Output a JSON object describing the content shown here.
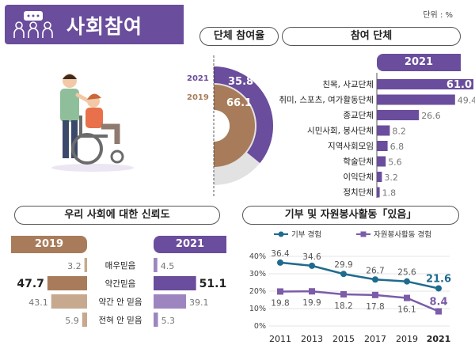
{
  "header": {
    "title": "사회참여",
    "unit": "단위 : %"
  },
  "colors": {
    "purple": "#6a4d9c",
    "brown": "#a87c5a",
    "gray": "#c8c8c8",
    "lightgray": "#e2e2e2",
    "line_blue": "#1f6b8e",
    "line_purple": "#7b5ca8"
  },
  "sections": {
    "participation_rate": "단체 참여율",
    "participation_org": "참여 단체",
    "trust": "우리 사회에 대한 신뢰도",
    "donation": "기부 및 자원봉사활동「있음」"
  },
  "chart_data": [
    {
      "type": "pie",
      "title": "단체 참여율",
      "series": [
        {
          "name": "2021",
          "value": 35.8
        },
        {
          "name": "2019",
          "value": 66.1
        }
      ]
    },
    {
      "type": "bar",
      "title": "참여 단체",
      "year": "2021",
      "categories": [
        "친목, 사교단체",
        "취미, 스포츠, 여가활동단체",
        "종교단체",
        "시민사회, 봉사단체",
        "지역사회모임",
        "학술단체",
        "이익단체",
        "정치단체"
      ],
      "values": [
        61.0,
        49.4,
        26.6,
        8.2,
        6.8,
        5.6,
        3.2,
        1.8
      ],
      "value_labels": [
        "61.0",
        "49.4",
        "26.6",
        "8.2",
        "6.8",
        "5.6",
        "3.2",
        "1.8"
      ],
      "xlim": [
        0,
        61
      ]
    },
    {
      "type": "bar",
      "title": "우리 사회에 대한 신뢰도",
      "categories": [
        "매우믿음",
        "약간믿음",
        "약간 안 믿음",
        "전혀 안 믿음"
      ],
      "series": [
        {
          "name": "2019",
          "values": [
            3.2,
            47.7,
            43.1,
            5.9
          ],
          "labels": [
            "3.2",
            "47.7",
            "43.1",
            "5.9"
          ]
        },
        {
          "name": "2021",
          "values": [
            4.5,
            51.1,
            39.1,
            5.3
          ],
          "labels": [
            "4.5",
            "51.1",
            "39.1",
            "5.3"
          ]
        }
      ]
    },
    {
      "type": "line",
      "title": "기부 및 자원봉사활동「있음」",
      "x": [
        "2011",
        "2013",
        "2015",
        "2017",
        "2019",
        "2021"
      ],
      "series": [
        {
          "name": "기부 경험",
          "values": [
            36.4,
            34.6,
            29.9,
            26.7,
            25.6,
            21.6
          ],
          "labels": [
            "36.4",
            "34.6",
            "29.9",
            "26.7",
            "25.6",
            "21.6"
          ]
        },
        {
          "name": "자원봉사활동 경험",
          "values": [
            19.8,
            19.9,
            18.2,
            17.8,
            16.1,
            8.4
          ],
          "labels": [
            "19.8",
            "19.9",
            "18.2",
            "17.8",
            "16.1",
            "8.4"
          ]
        }
      ],
      "yticks": [
        "0%",
        "10%",
        "20%",
        "30%",
        "40%"
      ],
      "ylim": [
        0,
        40
      ],
      "legend": "top"
    }
  ]
}
